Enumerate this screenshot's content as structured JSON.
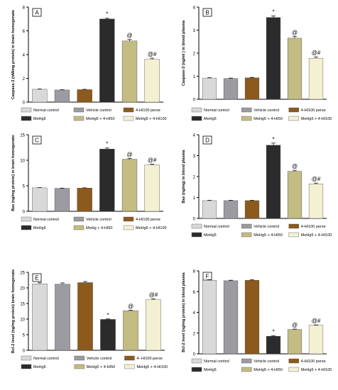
{
  "colors": {
    "normal": "#d9d9d9",
    "vehicle": "#9b9ba1",
    "perse": "#8c5a1c",
    "mehg": "#2b2b2b",
    "hi50": "#c3bc83",
    "hi100": "#f4f0d2"
  },
  "chart_data": [
    {
      "type": "bar",
      "panel": "A",
      "title": "",
      "xlabel": "",
      "ylabel": "Caspase-3 (nM/mg protein) in brain homogenate",
      "ylim": [
        0,
        8
      ],
      "yticks": [
        "0",
        "2",
        "4",
        "6",
        "8"
      ],
      "categories": [
        "Normal control",
        "Vehicle control",
        "4-HI100 perse",
        "MeHg5",
        "MeHg5 + 4-HI50",
        "MeHg5 + 4-HI100"
      ],
      "values": [
        1.08,
        1.02,
        1.05,
        7.0,
        5.15,
        3.6
      ],
      "errors": [
        0.03,
        0.03,
        0.03,
        0.06,
        0.12,
        0.1
      ],
      "annotations": [
        "",
        "",
        "",
        "*",
        "@",
        "@#"
      ],
      "legend": [
        "Normal control",
        "Vehicle control",
        "4-HI100 perse",
        "MeHg5",
        "MeHg5 + 4-HI50",
        "MeHg5 + 4-HI100"
      ]
    },
    {
      "type": "bar",
      "panel": "B",
      "title": "",
      "xlabel": "",
      "ylabel": "Caspase-3 (ng/ml ) in blood plasma",
      "ylim": [
        0,
        4
      ],
      "yticks": [
        "0",
        "1",
        "2",
        "3",
        "4"
      ],
      "categories": [
        "Normal control",
        "Vehicle control",
        "4-HI100 perse",
        "MeHg5",
        "MeHg5 + 4-HI50",
        "MeHg5 + 4-HI100"
      ],
      "values": [
        0.92,
        0.9,
        0.93,
        3.55,
        2.65,
        1.78
      ],
      "errors": [
        0.02,
        0.02,
        0.02,
        0.07,
        0.08,
        0.06
      ],
      "annotations": [
        "",
        "",
        "",
        "*",
        "@",
        "@#"
      ],
      "legend": [
        "Normal control",
        "Vehicle control",
        "4-HI100 perse",
        "MeHg5",
        "MeHg5 + 4-HI50",
        "MeHg5 + 4-HI100"
      ]
    },
    {
      "type": "bar",
      "panel": "C",
      "title": "",
      "xlabel": "",
      "ylabel": "Bax (ng/mg protein) in brain homogenate",
      "ylim": [
        0,
        15
      ],
      "yticks": [
        "0",
        "5",
        "10",
        "15"
      ],
      "categories": [
        "Normal control",
        "Vehicle control",
        "4-HI100 perse",
        "MeHg5",
        "MeHg + 4-HI50",
        "MeHg5 + 4-HI100"
      ],
      "values": [
        4.6,
        4.5,
        4.55,
        12.2,
        10.2,
        9.1
      ],
      "errors": [
        0.05,
        0.05,
        0.05,
        0.2,
        0.15,
        0.15
      ],
      "annotations": [
        "",
        "",
        "",
        "*",
        "@",
        "@#"
      ],
      "legend": [
        "Normal control",
        "Vehicle control",
        "4-HI100 perse",
        "MeHg5",
        "MeHg + 4-HI50",
        "MeHg5 + 4-HI100"
      ]
    },
    {
      "type": "bar",
      "panel": "D",
      "title": "",
      "xlabel": "",
      "ylabel": "Bax (ng/mg) in blood plasma",
      "ylim": [
        0,
        4
      ],
      "yticks": [
        "0",
        "1",
        "2",
        "3",
        "4"
      ],
      "categories": [
        "Normal control",
        "Vehicle control",
        "4-HI100 perse",
        "MeHg5",
        "MeHg5 + 4-HI50",
        "MeHg5 + 4-HI100"
      ],
      "values": [
        0.85,
        0.85,
        0.85,
        3.5,
        2.25,
        1.65
      ],
      "errors": [
        0.02,
        0.02,
        0.02,
        0.1,
        0.05,
        0.04
      ],
      "annotations": [
        "",
        "",
        "",
        "*",
        "@",
        "@#"
      ],
      "legend": [
        "Normal control",
        "Vehicle control",
        "4-HI100 perse",
        "MeHg5",
        "MeHg5 + 4-HI50",
        "MeHg5 + 4-HI100"
      ]
    },
    {
      "type": "bar",
      "panel": "E",
      "title": "",
      "xlabel": "",
      "ylabel": "Bcl-2 level (ng/mg protein) brain homogenate",
      "ylim": [
        0,
        25
      ],
      "yticks": [
        "0",
        "5",
        "10",
        "15",
        "20",
        "25"
      ],
      "categories": [
        "Normal control",
        "Vehicle control",
        "4- HI100 perse",
        "MeHg5",
        "MeHg5 + 4-HI50",
        "MeHg5 + 4-HI100"
      ],
      "values": [
        21.3,
        21.2,
        21.7,
        9.9,
        12.7,
        16.2
      ],
      "errors": [
        0.35,
        0.4,
        0.35,
        0.15,
        0.15,
        0.25
      ],
      "annotations": [
        "",
        "",
        "",
        "*",
        "@",
        "@#"
      ],
      "legend": [
        "Normal control",
        "Vehicle control",
        "4- HI100 perse",
        "MeHg5",
        "MeHg5 + 4-HI50",
        "MeHg5 + 4-HI100"
      ]
    },
    {
      "type": "bar",
      "panel": "F",
      "title": "",
      "xlabel": "",
      "ylabel": "Bcl-2 level (ng/mg protein) in blood plasma",
      "ylim": [
        0,
        8
      ],
      "yticks": [
        "0",
        "2",
        "4",
        "6",
        "8"
      ],
      "categories": [
        "Normal control",
        "Vehicle control",
        "4-HI100 perse",
        "MeHg5",
        "MeHg5 + 4-HI50",
        "MeHg5 + 4-HI100"
      ],
      "values": [
        7.1,
        7.05,
        7.1,
        1.7,
        2.35,
        2.75
      ],
      "errors": [
        0.05,
        0.05,
        0.05,
        0.04,
        0.04,
        0.04
      ],
      "annotations": [
        "",
        "",
        "",
        "*",
        "@",
        "@#"
      ],
      "legend": [
        "Normal control",
        "Vehicle control",
        "4-HI100 perse",
        "MeHg5",
        "MeHg5 + 4-HI50",
        "MeHg5 + 4-HI100"
      ]
    }
  ]
}
